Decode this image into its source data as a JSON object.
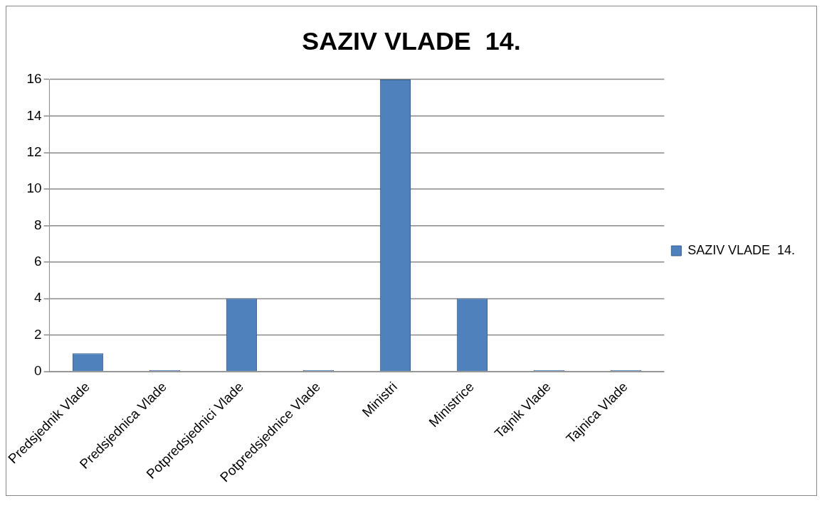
{
  "chart_data": {
    "type": "bar",
    "title": "SAZIV VLADE  14.",
    "categories": [
      "Predsjednik Vlade",
      "Predsjednica Vlade",
      "Potpredsjednici Vlade",
      "Potpredsjednice Vlade",
      "Ministri",
      "Ministrice",
      "Tajnik Vlade",
      "Tajnica Vlade"
    ],
    "series": [
      {
        "name": "SAZIV VLADE  14.",
        "color": "#4f81bd",
        "values": [
          1,
          0,
          4,
          0,
          16,
          4,
          0,
          0
        ]
      }
    ],
    "ylim": [
      0,
      16
    ],
    "yticks": [
      0,
      2,
      4,
      6,
      8,
      10,
      12,
      14,
      16
    ],
    "grid": "y",
    "legend": "right"
  }
}
